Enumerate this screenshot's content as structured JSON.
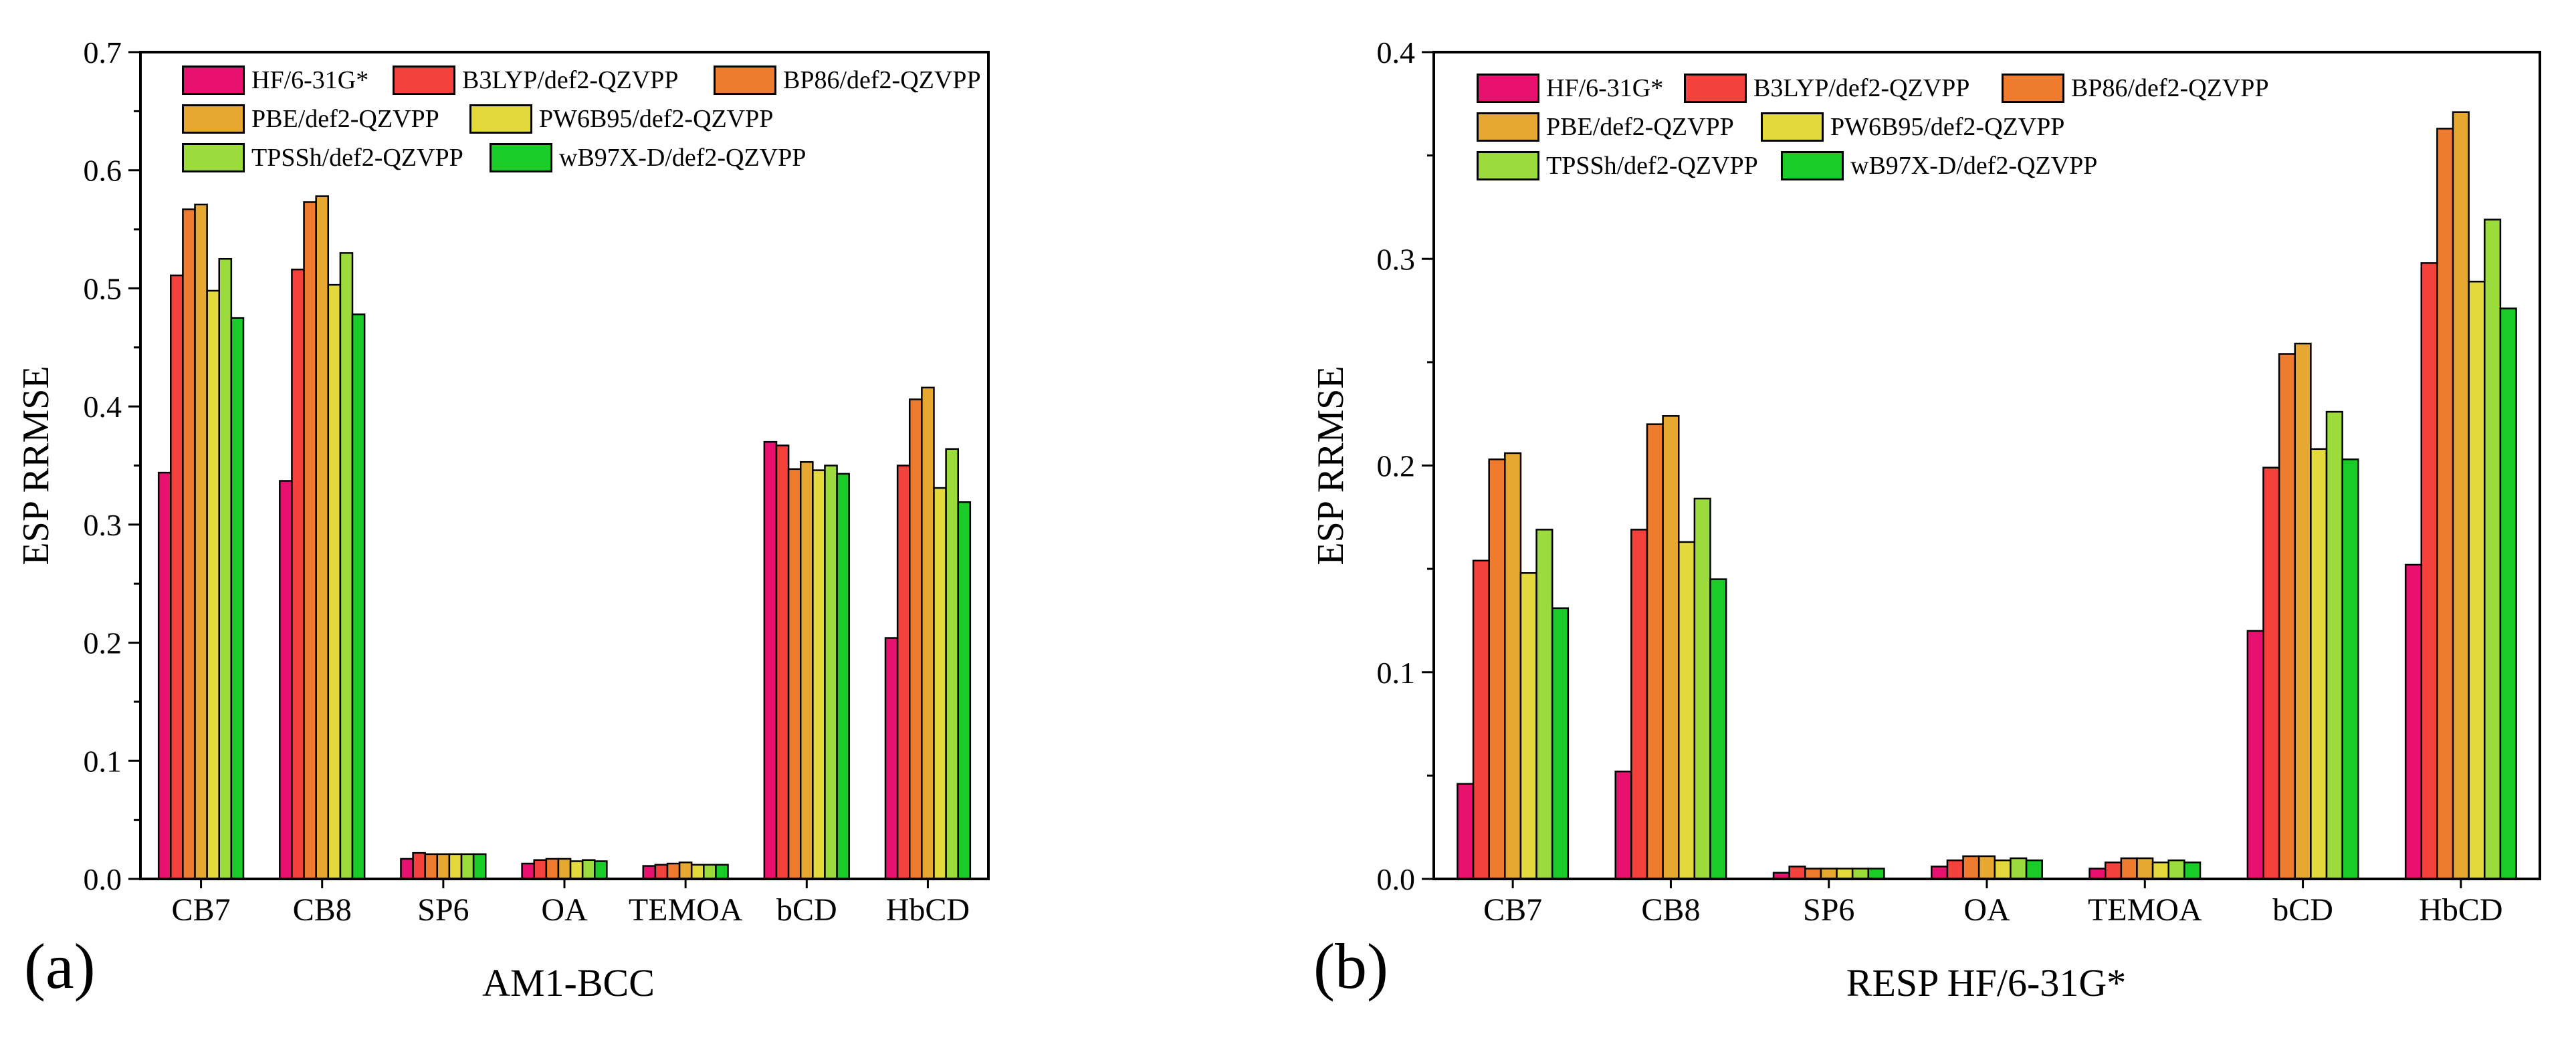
{
  "series_meta": [
    {
      "name": "HF/6-31G*",
      "color": "#E8116F"
    },
    {
      "name": "B3LYP/def2-QZVPP",
      "color": "#F4413C"
    },
    {
      "name": "BP86/def2-QZVPP",
      "color": "#EF7C2E"
    },
    {
      "name": "PBE/def2-QZVPP",
      "color": "#E6A831"
    },
    {
      "name": "PW6B95/def2-QZVPP",
      "color": "#E3D93C"
    },
    {
      "name": "TPSSh/def2-QZVPP",
      "color": "#9CDB3C"
    },
    {
      "name": "wB97X-D/def2-QZVPP",
      "color": "#19CC27"
    }
  ],
  "chart_data": [
    {
      "type": "bar",
      "panel_label": "(a)",
      "title": "",
      "xlabel": "AM1-BCC",
      "ylabel": "ESP RRMSE",
      "ylim": [
        0,
        0.7
      ],
      "yticks": [
        "0.0",
        "0.1",
        "0.2",
        "0.3",
        "0.4",
        "0.5",
        "0.6",
        "0.7"
      ],
      "categories": [
        "CB7",
        "CB8",
        "SP6",
        "OA",
        "TEMOA",
        "bCD",
        "HbCD"
      ],
      "legend_position": "top-left",
      "series": [
        {
          "name": "HF/6-31G*",
          "values": [
            0.344,
            0.337,
            0.017,
            0.013,
            0.011,
            0.37,
            0.204
          ]
        },
        {
          "name": "B3LYP/def2-QZVPP",
          "values": [
            0.511,
            0.516,
            0.022,
            0.016,
            0.012,
            0.367,
            0.35
          ]
        },
        {
          "name": "BP86/def2-QZVPP",
          "values": [
            0.567,
            0.573,
            0.021,
            0.017,
            0.013,
            0.347,
            0.406
          ]
        },
        {
          "name": "PBE/def2-QZVPP",
          "values": [
            0.571,
            0.578,
            0.021,
            0.017,
            0.014,
            0.353,
            0.416
          ]
        },
        {
          "name": "PW6B95/def2-QZVPP",
          "values": [
            0.498,
            0.503,
            0.021,
            0.015,
            0.012,
            0.346,
            0.331
          ]
        },
        {
          "name": "TPSSh/def2-QZVPP",
          "values": [
            0.525,
            0.53,
            0.021,
            0.016,
            0.012,
            0.35,
            0.364
          ]
        },
        {
          "name": "wB97X-D/def2-QZVPP",
          "values": [
            0.475,
            0.478,
            0.021,
            0.015,
            0.012,
            0.343,
            0.319
          ]
        }
      ]
    },
    {
      "type": "bar",
      "panel_label": "(b)",
      "title": "",
      "xlabel": "RESP HF/6-31G*",
      "ylabel": "ESP RRMSE",
      "ylim": [
        0,
        0.4
      ],
      "yticks": [
        "0.0",
        "0.1",
        "0.2",
        "0.3",
        "0.4"
      ],
      "categories": [
        "CB7",
        "CB8",
        "SP6",
        "OA",
        "TEMOA",
        "bCD",
        "HbCD"
      ],
      "legend_position": "top-left",
      "series": [
        {
          "name": "HF/6-31G*",
          "values": [
            0.046,
            0.052,
            0.003,
            0.006,
            0.005,
            0.12,
            0.152
          ]
        },
        {
          "name": "B3LYP/def2-QZVPP",
          "values": [
            0.154,
            0.169,
            0.006,
            0.009,
            0.008,
            0.199,
            0.298
          ]
        },
        {
          "name": "BP86/def2-QZVPP",
          "values": [
            0.203,
            0.22,
            0.005,
            0.011,
            0.01,
            0.254,
            0.363
          ]
        },
        {
          "name": "PBE/def2-QZVPP",
          "values": [
            0.206,
            0.224,
            0.005,
            0.011,
            0.01,
            0.259,
            0.371
          ]
        },
        {
          "name": "PW6B95/def2-QZVPP",
          "values": [
            0.148,
            0.163,
            0.005,
            0.009,
            0.008,
            0.208,
            0.289
          ]
        },
        {
          "name": "TPSSh/def2-QZVPP",
          "values": [
            0.169,
            0.184,
            0.005,
            0.01,
            0.009,
            0.226,
            0.319
          ]
        },
        {
          "name": "wB97X-D/def2-QZVPP",
          "values": [
            0.131,
            0.145,
            0.005,
            0.009,
            0.008,
            0.203,
            0.276
          ]
        }
      ]
    }
  ]
}
